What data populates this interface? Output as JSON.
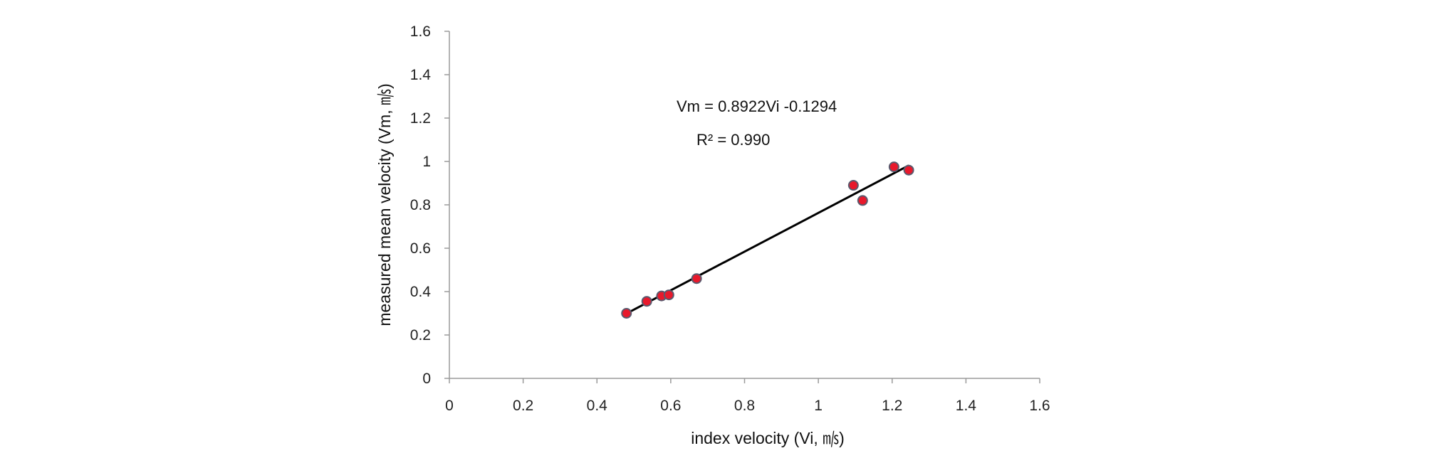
{
  "chart_data": {
    "type": "scatter",
    "xlabel": "index velocity (Vi, ㎧)",
    "ylabel": "measured mean velocity (Vm, ㎧)",
    "xlim": [
      0,
      1.6
    ],
    "ylim": [
      0,
      1.6
    ],
    "x_ticks": [
      "0",
      "0.2",
      "0.4",
      "0.6",
      "0.8",
      "1",
      "1.2",
      "1.4",
      "1.6"
    ],
    "y_ticks": [
      "0",
      "0.2",
      "0.4",
      "0.6",
      "0.8",
      "1",
      "1.2",
      "1.4",
      "1.6"
    ],
    "grid": false,
    "points": [
      {
        "x": 0.48,
        "y": 0.3
      },
      {
        "x": 0.535,
        "y": 0.355
      },
      {
        "x": 0.575,
        "y": 0.38
      },
      {
        "x": 0.595,
        "y": 0.385
      },
      {
        "x": 0.67,
        "y": 0.46
      },
      {
        "x": 1.095,
        "y": 0.89
      },
      {
        "x": 1.12,
        "y": 0.82
      },
      {
        "x": 1.205,
        "y": 0.975
      },
      {
        "x": 1.245,
        "y": 0.96
      }
    ],
    "trendline": {
      "slope": 0.8922,
      "intercept": -0.1294,
      "x_range": [
        0.48,
        1.245
      ]
    },
    "equation_text": "Vm = 0.8922Vi -0.1294",
    "r2_text": "R² = 0.990",
    "colors": {
      "marker_fill": "#e8192c",
      "marker_edge": "#5a5a6e",
      "trendline": "#000000",
      "axis": "#9a9a9a"
    }
  }
}
